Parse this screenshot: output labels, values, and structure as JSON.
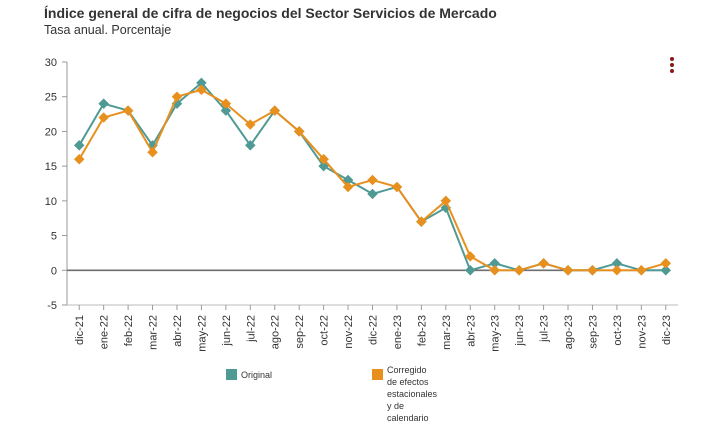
{
  "title": "Índice general de cifra de negocios del Sector Servicios de Mercado",
  "subtitle": "Tasa anual. Porcentaje",
  "menu_icon": "more-vert-icon",
  "chart_data": {
    "type": "line",
    "categories": [
      "dic-21",
      "ene-22",
      "feb-22",
      "mar-22",
      "abr-22",
      "may-22",
      "jun-22",
      "jul-22",
      "ago-22",
      "sep-22",
      "oct-22",
      "nov-22",
      "dic-22",
      "ene-23",
      "feb-23",
      "mar-23",
      "abr-23",
      "may-23",
      "jun-23",
      "jul-23",
      "ago-23",
      "sep-23",
      "oct-23",
      "nov-23",
      "dic-23"
    ],
    "tick_labels": [
      "dic-21",
      "ene-22",
      "feb-22",
      "mar-22",
      "abr-22",
      "may-22",
      "jun-22",
      "jul-22",
      "ago-22",
      "sep-22",
      "oct-22",
      "nov-22",
      "dic-22",
      "ene-23",
      "feb-23",
      "mar-23",
      "abr-23",
      "may-23",
      "jun-23",
      "jul-23",
      "ago-23",
      "sep-23",
      "oct-23",
      "nov-23",
      "dic-23"
    ],
    "series": [
      {
        "name": "Original",
        "color": "#4f9a94",
        "marker": "diamond",
        "values": [
          18,
          24,
          23,
          18,
          24,
          27,
          23,
          18,
          23,
          20,
          15,
          13,
          11,
          12,
          7,
          9,
          0,
          1,
          0,
          1,
          0,
          0,
          1,
          0,
          0
        ]
      },
      {
        "name": "Corregido de efectos estacionales y de calendario",
        "color": "#e8901e",
        "marker": "diamond",
        "values": [
          16,
          22,
          23,
          17,
          25,
          26,
          24,
          21,
          23,
          20,
          16,
          12,
          13,
          12,
          7,
          10,
          2,
          0,
          0,
          1,
          0,
          0,
          0,
          0,
          1
        ]
      }
    ],
    "ylim": [
      -5,
      30
    ],
    "yticks": [
      -5,
      0,
      5,
      10,
      15,
      20,
      25,
      30
    ],
    "xlabel": "",
    "ylabel": "",
    "grid": false,
    "zero_line": true,
    "legend_position": "bottom",
    "legend": [
      {
        "label_lines": [
          "Original"
        ],
        "color": "#4f9a94"
      },
      {
        "label_lines": [
          "Corregido de efectos",
          "estacionales y de calendario"
        ],
        "color": "#e8901e"
      }
    ]
  }
}
